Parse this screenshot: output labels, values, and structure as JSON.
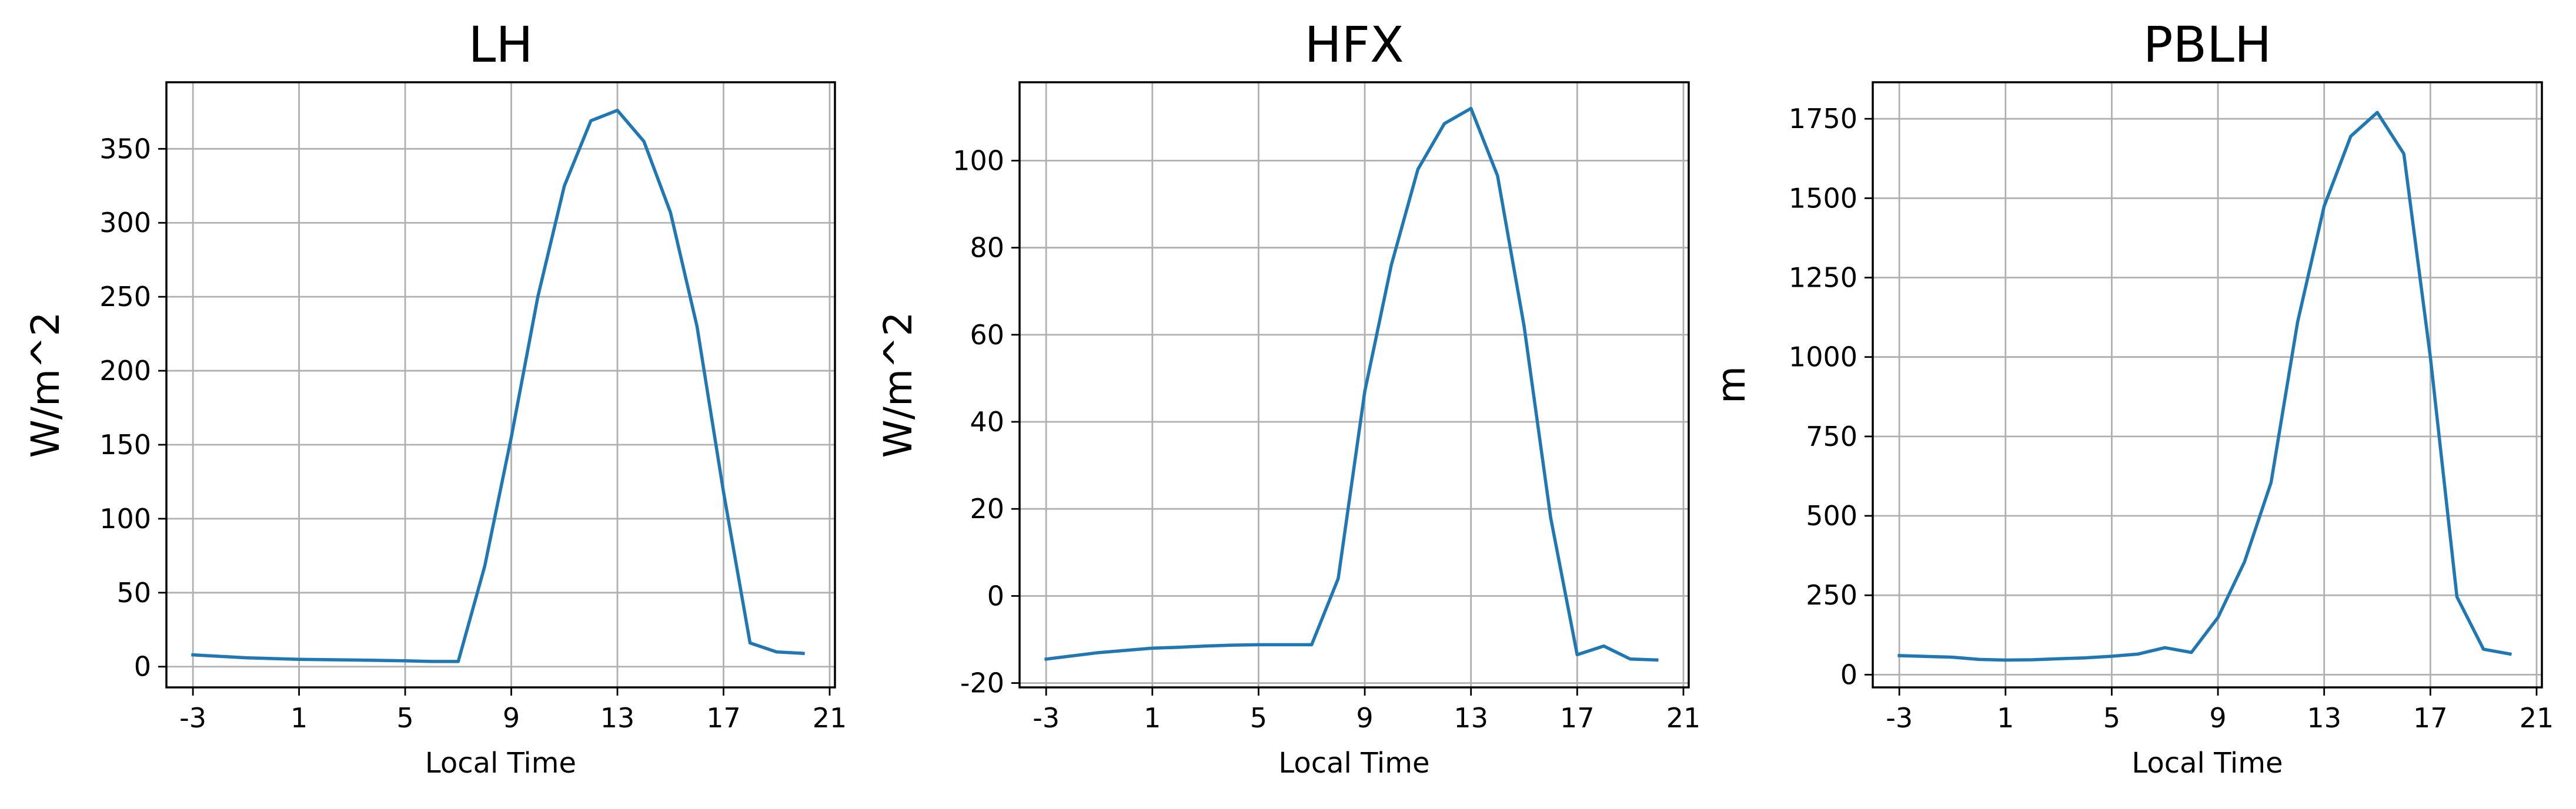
{
  "colors": {
    "series": "#1f77b4",
    "grid": "#b0b0b0"
  },
  "chart_data": [
    {
      "type": "line",
      "title": "LH",
      "xlabel": "Local Time",
      "ylabel": "W/m^2",
      "grid": true,
      "xlim": [
        -4,
        21.2
      ],
      "ylim": [
        -14,
        395
      ],
      "xticks": [
        -3,
        1,
        5,
        9,
        13,
        17,
        21
      ],
      "yticks": [
        0,
        50,
        100,
        150,
        200,
        250,
        300,
        350
      ],
      "series": [
        {
          "x": [
            -3,
            -1,
            1,
            3,
            5,
            6,
            7,
            8,
            9,
            10,
            11,
            12,
            13,
            14,
            15,
            16,
            17,
            18,
            19,
            20
          ],
          "y": [
            8,
            6,
            5,
            4.5,
            4,
            3.5,
            3.5,
            68,
            155,
            250,
            325,
            369,
            376,
            355,
            307,
            230,
            118,
            16,
            10,
            9
          ]
        }
      ]
    },
    {
      "type": "line",
      "title": "HFX",
      "xlabel": "Local Time",
      "ylabel": "W/m^2",
      "grid": true,
      "xlim": [
        -4,
        21.2
      ],
      "ylim": [
        -21,
        118
      ],
      "xticks": [
        -3,
        1,
        5,
        9,
        13,
        17,
        21
      ],
      "yticks": [
        -20,
        0,
        20,
        40,
        60,
        80,
        100
      ],
      "series": [
        {
          "x": [
            -3,
            -1,
            0,
            1,
            2,
            3,
            4,
            5,
            6,
            7,
            8,
            9,
            10,
            11,
            12,
            13,
            14,
            15,
            16,
            17,
            18,
            19,
            20
          ],
          "y": [
            -14.5,
            -13,
            -12.5,
            -12,
            -11.8,
            -11.5,
            -11.3,
            -11.2,
            -11.2,
            -11.2,
            4,
            47,
            76,
            98,
            108.5,
            112,
            96.5,
            62,
            18,
            -13.5,
            -11.5,
            -14.5,
            -14.7
          ]
        }
      ]
    },
    {
      "type": "line",
      "title": "PBLH",
      "xlabel": "",
      "ylabel": "m",
      "grid": true,
      "xlim": [
        -4,
        21.2
      ],
      "ylim": [
        -40,
        1865
      ],
      "xticks": [
        -3,
        1,
        5,
        9,
        13,
        17,
        21
      ],
      "yticks": [
        0,
        250,
        500,
        750,
        1000,
        1250,
        1500,
        1750
      ],
      "series": [
        {
          "x": [
            -3,
            -1,
            0,
            1,
            2,
            3,
            4,
            5,
            6,
            7,
            8,
            9,
            10,
            11,
            12,
            13,
            14,
            15,
            16,
            17,
            18,
            19,
            20
          ],
          "y": [
            60,
            55,
            48,
            46,
            47,
            50,
            53,
            58,
            65,
            85,
            70,
            180,
            355,
            605,
            1110,
            1475,
            1695,
            1770,
            1640,
            1000,
            245,
            80,
            65
          ]
        }
      ]
    }
  ],
  "panel3_xlabel": "Local Time"
}
